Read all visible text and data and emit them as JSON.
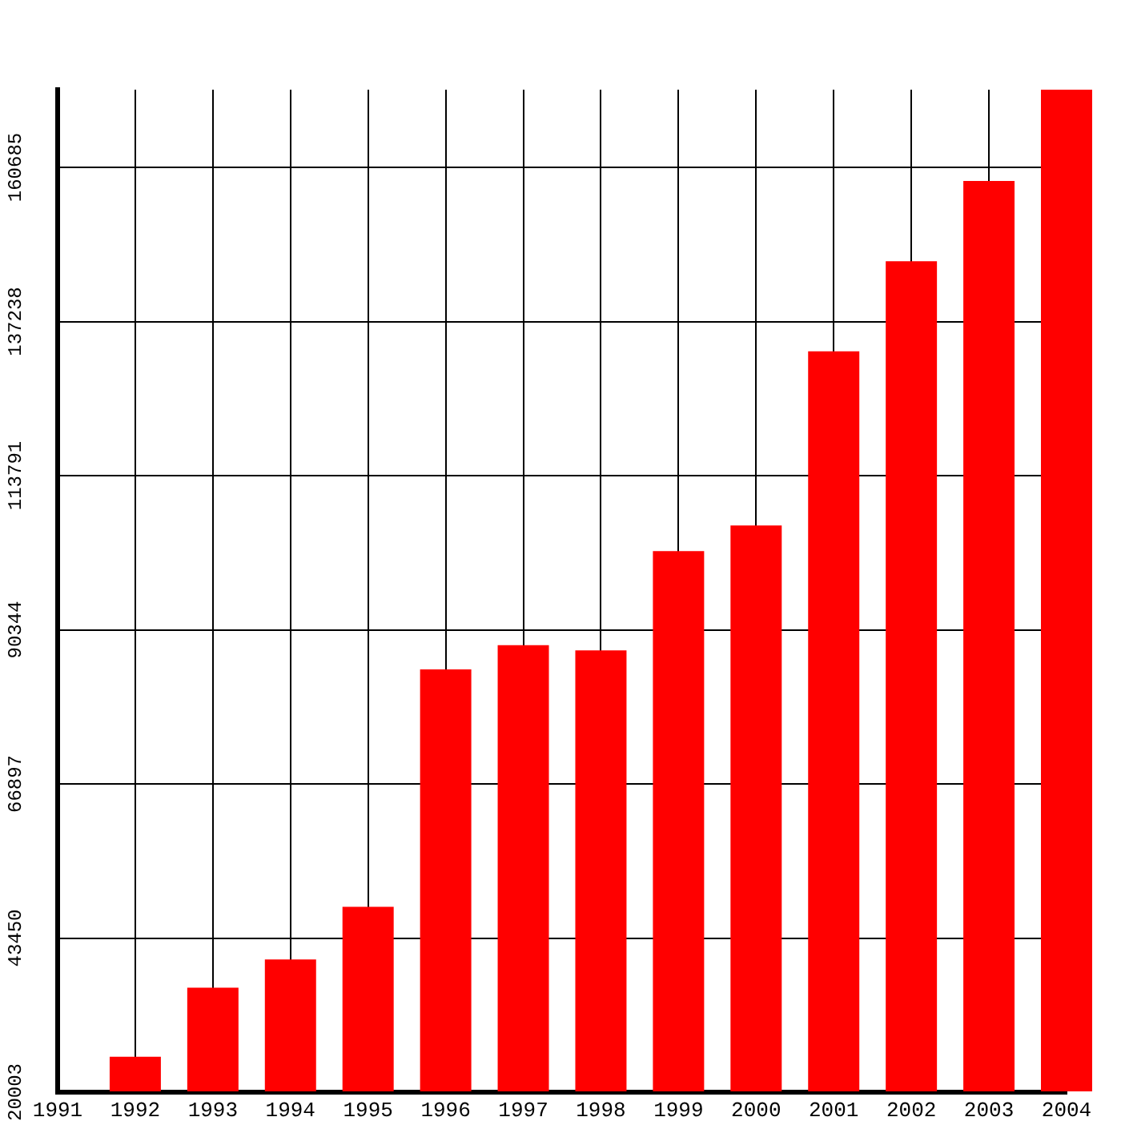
{
  "chart_data": {
    "type": "bar",
    "categories": [
      "1991",
      "1992",
      "1993",
      "1994",
      "1995",
      "1996",
      "1997",
      "1998",
      "1999",
      "2000",
      "2001",
      "2002",
      "2003",
      "2004"
    ],
    "values": [
      20003,
      25400,
      35900,
      40200,
      48200,
      84300,
      88000,
      87200,
      102300,
      106200,
      132700,
      146400,
      158600,
      172500
    ],
    "color": "#ff0000",
    "ylim": [
      20003,
      172500
    ],
    "yticks": [
      20003,
      43450,
      66897,
      90344,
      113791,
      137238,
      160685
    ],
    "grid": true
  }
}
